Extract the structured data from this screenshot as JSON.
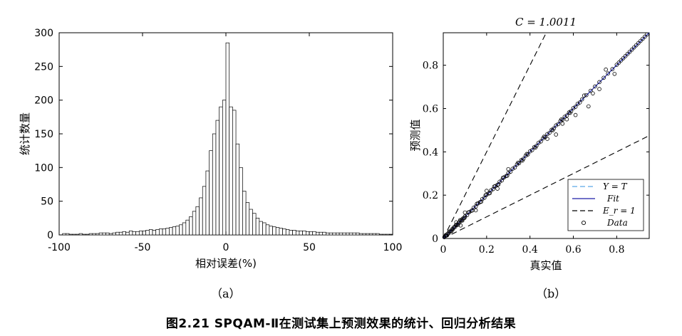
{
  "figure_caption": "图2.21 SPQAM-Ⅱ在测试集上预测效果的统计、回归分析结果",
  "chart_data": [
    {
      "type": "bar",
      "panel_label": "（a）",
      "xlabel": "相对误差(%)",
      "ylabel": "统计数量",
      "xlim": [
        -100,
        100
      ],
      "ylim": [
        0,
        300
      ],
      "xticks": [
        "-100",
        "-50",
        "0",
        "50",
        "100"
      ],
      "yticks": [
        "0",
        "50",
        "100",
        "150",
        "200",
        "250",
        "300"
      ],
      "bin_width": 2,
      "bin_starts": [
        -100,
        -98,
        -96,
        -94,
        -92,
        -90,
        -88,
        -86,
        -84,
        -82,
        -80,
        -78,
        -76,
        -74,
        -72,
        -70,
        -68,
        -66,
        -64,
        -62,
        -60,
        -58,
        -56,
        -54,
        -52,
        -50,
        -48,
        -46,
        -44,
        -42,
        -40,
        -38,
        -36,
        -34,
        -32,
        -30,
        -28,
        -26,
        -24,
        -22,
        -20,
        -18,
        -16,
        -14,
        -12,
        -10,
        -8,
        -6,
        -4,
        -2,
        0,
        2,
        4,
        6,
        8,
        10,
        12,
        14,
        16,
        18,
        20,
        22,
        24,
        26,
        28,
        30,
        32,
        34,
        36,
        38,
        40,
        42,
        44,
        46,
        48,
        50,
        52,
        54,
        56,
        58,
        60,
        62,
        64,
        66,
        68,
        70,
        72,
        74,
        76,
        78,
        80,
        82,
        84,
        86,
        88,
        90,
        92,
        94,
        96,
        98
      ],
      "counts": [
        0,
        2,
        2,
        1,
        1,
        1,
        2,
        1,
        1,
        2,
        2,
        2,
        3,
        3,
        3,
        2,
        3,
        4,
        4,
        5,
        4,
        6,
        5,
        5,
        6,
        6,
        7,
        8,
        7,
        8,
        9,
        9,
        10,
        11,
        12,
        13,
        15,
        18,
        22,
        27,
        35,
        42,
        55,
        72,
        95,
        125,
        150,
        170,
        190,
        200,
        285,
        190,
        185,
        135,
        100,
        65,
        48,
        38,
        32,
        25,
        20,
        18,
        15,
        13,
        12,
        11,
        10,
        9,
        8,
        7,
        7,
        6,
        6,
        6,
        5,
        5,
        5,
        4,
        4,
        4,
        3,
        3,
        3,
        3,
        3,
        3,
        3,
        3,
        3,
        3,
        2,
        2,
        2,
        2,
        2,
        2,
        1,
        1,
        1,
        1
      ]
    },
    {
      "type": "scatter",
      "panel_label": "（b）",
      "title": "C = 1.0011",
      "xlabel": "真实值",
      "ylabel": "预测值",
      "xlim": [
        0,
        0.95
      ],
      "ylim": [
        0,
        0.95
      ],
      "xticks": [
        "0",
        "0.2",
        "0.4",
        "0.6",
        "0.8"
      ],
      "yticks": [
        "0",
        "0.2",
        "0.4",
        "0.6",
        "0.8"
      ],
      "legend_position": "bottom-right",
      "series": [
        {
          "name": "Y = T",
          "style": "dashed",
          "color": "#5aa9e6",
          "slope": 1.0
        },
        {
          "name": "Fit",
          "style": "solid",
          "color": "#1f1fa8",
          "slope": 1.0011
        },
        {
          "name": "E_r = 1",
          "style": "dashed",
          "color": "#000000",
          "slopes": [
            2.0,
            0.5
          ]
        },
        {
          "name": "Data",
          "style": "marker",
          "color": "#000000",
          "x": [
            0.005,
            0.01,
            0.015,
            0.02,
            0.025,
            0.03,
            0.035,
            0.04,
            0.045,
            0.05,
            0.055,
            0.06,
            0.065,
            0.07,
            0.075,
            0.08,
            0.085,
            0.09,
            0.095,
            0.1,
            0.11,
            0.12,
            0.13,
            0.14,
            0.15,
            0.16,
            0.17,
            0.18,
            0.19,
            0.2,
            0.21,
            0.22,
            0.23,
            0.24,
            0.25,
            0.26,
            0.27,
            0.28,
            0.29,
            0.3,
            0.31,
            0.32,
            0.33,
            0.34,
            0.35,
            0.36,
            0.37,
            0.38,
            0.39,
            0.4,
            0.41,
            0.42,
            0.43,
            0.44,
            0.45,
            0.46,
            0.47,
            0.48,
            0.49,
            0.5,
            0.51,
            0.52,
            0.53,
            0.54,
            0.55,
            0.56,
            0.57,
            0.58,
            0.59,
            0.6,
            0.61,
            0.62,
            0.63,
            0.64,
            0.66,
            0.68,
            0.7,
            0.72,
            0.74,
            0.76,
            0.78,
            0.8,
            0.81,
            0.82,
            0.83,
            0.84,
            0.85,
            0.86,
            0.87,
            0.88,
            0.89,
            0.9,
            0.91,
            0.92,
            0.93,
            0.94,
            0.012,
            0.018,
            0.028,
            0.038,
            0.048,
            0.058,
            0.068,
            0.078,
            0.088,
            0.098,
            0.115,
            0.135,
            0.155,
            0.175,
            0.195,
            0.215,
            0.235,
            0.255,
            0.275,
            0.295,
            0.345,
            0.365,
            0.385,
            0.425,
            0.465,
            0.505,
            0.545,
            0.585,
            0.06,
            0.08,
            0.1,
            0.15,
            0.2,
            0.25,
            0.3,
            0.48,
            0.55,
            0.65,
            0.72,
            0.75,
            0.79,
            0.69,
            0.67,
            0.61,
            0.57,
            0.52
          ],
          "y": [
            0.006,
            0.012,
            0.014,
            0.022,
            0.024,
            0.032,
            0.034,
            0.042,
            0.044,
            0.052,
            0.054,
            0.062,
            0.063,
            0.072,
            0.074,
            0.082,
            0.084,
            0.092,
            0.094,
            0.102,
            0.108,
            0.122,
            0.128,
            0.142,
            0.148,
            0.162,
            0.168,
            0.182,
            0.188,
            0.202,
            0.208,
            0.222,
            0.228,
            0.242,
            0.248,
            0.262,
            0.268,
            0.282,
            0.288,
            0.302,
            0.308,
            0.322,
            0.328,
            0.342,
            0.348,
            0.362,
            0.368,
            0.382,
            0.388,
            0.402,
            0.408,
            0.422,
            0.428,
            0.442,
            0.448,
            0.462,
            0.468,
            0.482,
            0.488,
            0.502,
            0.508,
            0.522,
            0.528,
            0.542,
            0.548,
            0.562,
            0.568,
            0.582,
            0.588,
            0.602,
            0.608,
            0.622,
            0.628,
            0.642,
            0.662,
            0.682,
            0.702,
            0.722,
            0.742,
            0.762,
            0.782,
            0.802,
            0.812,
            0.822,
            0.832,
            0.842,
            0.852,
            0.862,
            0.872,
            0.882,
            0.892,
            0.902,
            0.912,
            0.922,
            0.932,
            0.942,
            0.016,
            0.015,
            0.032,
            0.034,
            0.05,
            0.062,
            0.065,
            0.085,
            0.083,
            0.095,
            0.12,
            0.13,
            0.16,
            0.17,
            0.2,
            0.21,
            0.24,
            0.25,
            0.28,
            0.29,
            0.35,
            0.36,
            0.39,
            0.42,
            0.47,
            0.5,
            0.55,
            0.58,
            0.075,
            0.06,
            0.12,
            0.13,
            0.22,
            0.23,
            0.32,
            0.46,
            0.53,
            0.66,
            0.69,
            0.78,
            0.76,
            0.67,
            0.61,
            0.57,
            0.55,
            0.48
          ]
        }
      ]
    }
  ]
}
